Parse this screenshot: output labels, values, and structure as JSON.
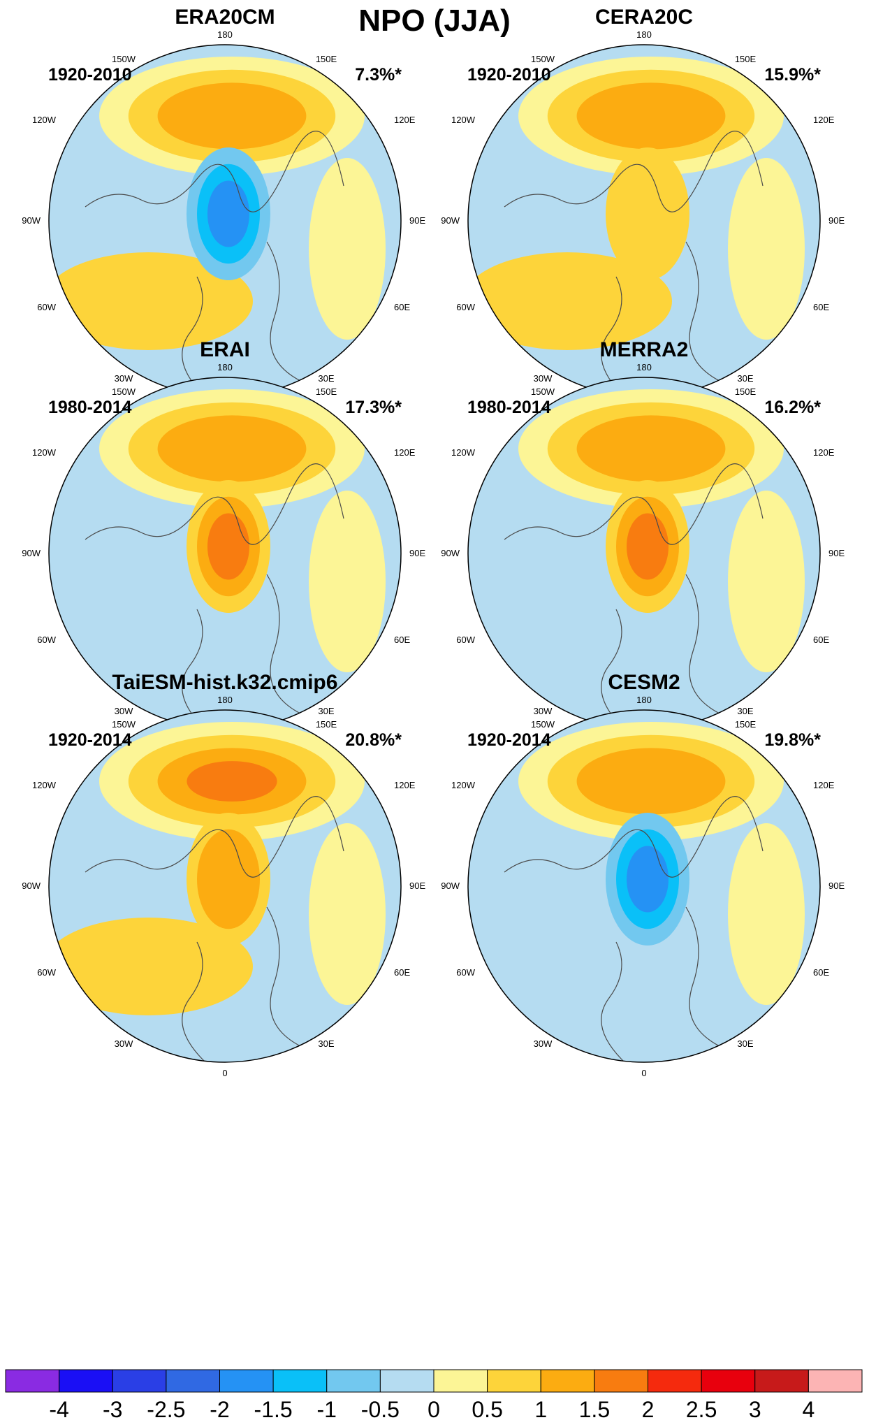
{
  "figure": {
    "title": "NPO (JJA)"
  },
  "panels": [
    {
      "title": "ERA20CM",
      "period": "1920-2010",
      "variance": "7.3%*",
      "pattern": {
        "north_pacific_high": 1.1,
        "polar": -1.8,
        "atlantic": 0.5
      }
    },
    {
      "title": "CERA20C",
      "period": "1920-2010",
      "variance": "15.9%*",
      "pattern": {
        "north_pacific_high": 1.3,
        "polar": 0.9,
        "atlantic": 0.5
      }
    },
    {
      "title": "ERAI",
      "period": "1980-2014",
      "variance": "17.3%*",
      "pattern": {
        "north_pacific_high": 1.1,
        "polar": 1.6,
        "atlantic": 0.0
      }
    },
    {
      "title": "MERRA2",
      "period": "1980-2014",
      "variance": "16.2%*",
      "pattern": {
        "north_pacific_high": 1.3,
        "polar": 1.6,
        "atlantic": 0.0
      }
    },
    {
      "title": "TaiESM-hist.k32.cmip6",
      "period": "1920-2014",
      "variance": "20.8%*",
      "pattern": {
        "north_pacific_high": 1.6,
        "polar": 1.2,
        "atlantic": 0.5
      }
    },
    {
      "title": "CESM2",
      "period": "1920-2014",
      "variance": "19.8%*",
      "pattern": {
        "north_pacific_high": 1.4,
        "polar": -1.6,
        "atlantic": 0.0
      }
    }
  ],
  "lon_labels": {
    "top": "180",
    "bottom": "0",
    "left": "90W",
    "right": "90E",
    "upper_left": "150W",
    "upper_right": "150E",
    "mid_upper_left": "120W",
    "mid_upper_right": "120E",
    "mid_lower_left": "60W",
    "mid_lower_right": "60E",
    "lower_left": "30W",
    "lower_right": "30E"
  },
  "colorbar": {
    "labels": [
      "-4",
      "-3",
      "-2.5",
      "-2",
      "-1.5",
      "-1",
      "-0.5",
      "0",
      "0.5",
      "1",
      "1.5",
      "2",
      "2.5",
      "3",
      "4"
    ],
    "colors": [
      "#8a2be2",
      "#1a0ff5",
      "#2a3fe6",
      "#3069e3",
      "#2592f4",
      "#0ac0f8",
      "#72c8ef",
      "#b5dcf1",
      "#fcf596",
      "#fdd43a",
      "#fcac11",
      "#f87c10",
      "#f52a0d",
      "#e8000d",
      "#c71a1a",
      "#fcb4b4"
    ]
  }
}
